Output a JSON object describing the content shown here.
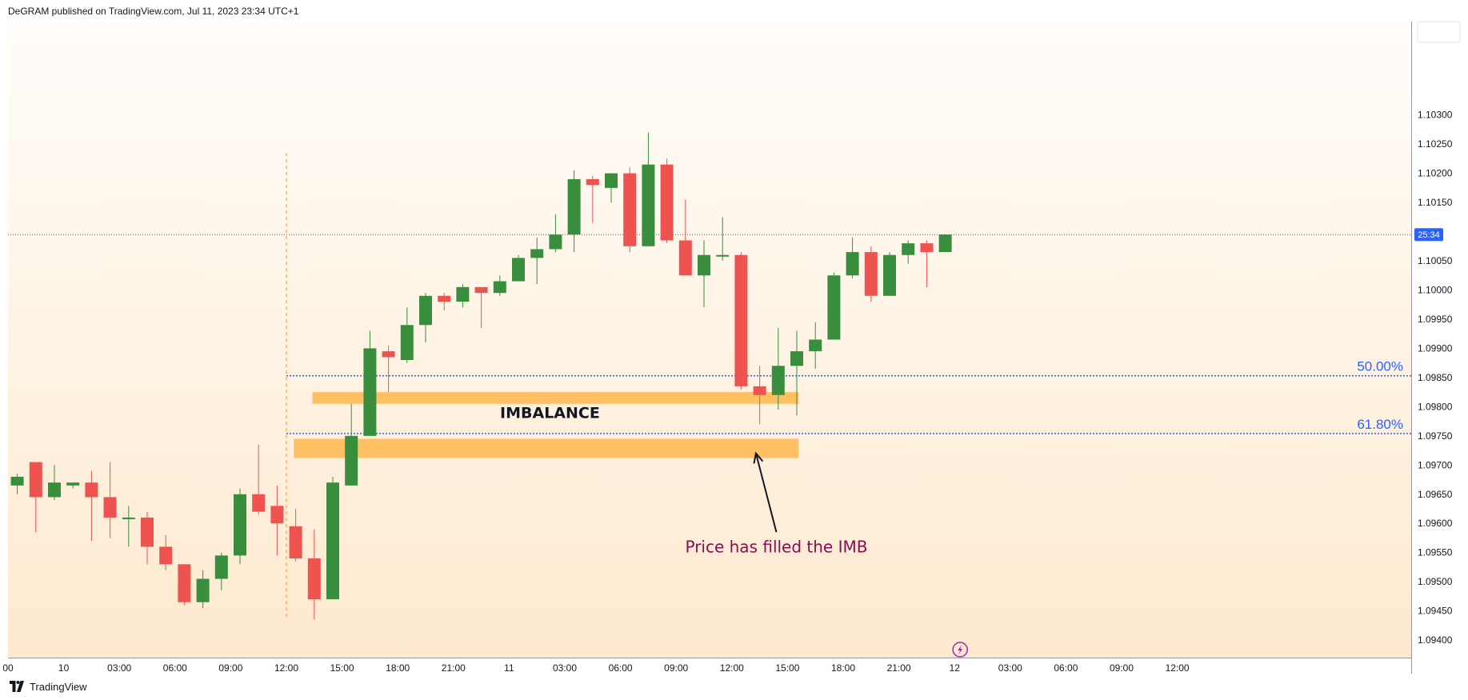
{
  "header": {
    "publisher_line": "DeGRAM published on TradingView.com, Jul 11, 2023 23:34 UTC+1"
  },
  "footer": {
    "brand": "TradingView"
  },
  "colors": {
    "up": "#388e3c",
    "down": "#ef5350",
    "zone": "#ffb74d",
    "fib": "#2962ff",
    "annotation_text": "#880e4f"
  },
  "chart_data": {
    "type": "candlestick",
    "price_axis": {
      "labels": [
        "1.10300",
        "1.10250",
        "1.10200",
        "1.10150",
        "1.10050",
        "1.10000",
        "1.09950",
        "1.09900",
        "1.09850",
        "1.09800",
        "1.09750",
        "1.09700",
        "1.09650",
        "1.09600",
        "1.09550",
        "1.09500",
        "1.09450",
        "1.09400"
      ],
      "range": [
        1.0937,
        1.1046
      ],
      "current_price": 1.10095,
      "countdown": "25:34"
    },
    "time_axis": {
      "labels": [
        "00",
        "10",
        "03:00",
        "06:00",
        "09:00",
        "12:00",
        "15:00",
        "18:00",
        "21:00",
        "11",
        "03:00",
        "06:00",
        "09:00",
        "12:00",
        "15:00",
        "18:00",
        "21:00",
        "12",
        "03:00",
        "06:00",
        "09:00",
        "12:00"
      ],
      "label_slots": [
        -0.5,
        2.5,
        5.5,
        8.5,
        11.5,
        14.5,
        17.5,
        20.5,
        23.5,
        26.5,
        29.5,
        32.5,
        35.5,
        38.5,
        41.5,
        44.5,
        47.5,
        50.5,
        53.5,
        56.5,
        59.5,
        62.5
      ]
    },
    "candles": [
      {
        "o": 1.09665,
        "h": 1.09685,
        "l": 1.0965,
        "c": 1.0968
      },
      {
        "o": 1.09705,
        "h": 1.09705,
        "l": 1.09585,
        "c": 1.09645
      },
      {
        "o": 1.09645,
        "h": 1.097,
        "l": 1.0964,
        "c": 1.0967
      },
      {
        "o": 1.09665,
        "h": 1.0967,
        "l": 1.0966,
        "c": 1.0967
      },
      {
        "o": 1.0967,
        "h": 1.0969,
        "l": 1.0957,
        "c": 1.09645
      },
      {
        "o": 1.09645,
        "h": 1.09705,
        "l": 1.09575,
        "c": 1.0961
      },
      {
        "o": 1.0961,
        "h": 1.0963,
        "l": 1.0956,
        "c": 1.0961
      },
      {
        "o": 1.0961,
        "h": 1.0962,
        "l": 1.0953,
        "c": 1.0956
      },
      {
        "o": 1.0956,
        "h": 1.0958,
        "l": 1.0952,
        "c": 1.0953
      },
      {
        "o": 1.0953,
        "h": 1.0953,
        "l": 1.0946,
        "c": 1.09465
      },
      {
        "o": 1.09465,
        "h": 1.0952,
        "l": 1.09455,
        "c": 1.09505
      },
      {
        "o": 1.09505,
        "h": 1.0955,
        "l": 1.09485,
        "c": 1.09545
      },
      {
        "o": 1.09545,
        "h": 1.0966,
        "l": 1.0953,
        "c": 1.0965
      },
      {
        "o": 1.0965,
        "h": 1.09735,
        "l": 1.09615,
        "c": 1.0962
      },
      {
        "o": 1.0963,
        "h": 1.09665,
        "l": 1.09545,
        "c": 1.096
      },
      {
        "o": 1.09595,
        "h": 1.09625,
        "l": 1.09535,
        "c": 1.0954
      },
      {
        "o": 1.0954,
        "h": 1.0959,
        "l": 1.09435,
        "c": 1.0947
      },
      {
        "o": 1.0947,
        "h": 1.0968,
        "l": 1.0947,
        "c": 1.0967
      },
      {
        "o": 1.09665,
        "h": 1.09805,
        "l": 1.09665,
        "c": 1.0975
      },
      {
        "o": 1.0975,
        "h": 1.0993,
        "l": 1.0975,
        "c": 1.099
      },
      {
        "o": 1.09895,
        "h": 1.09905,
        "l": 1.09825,
        "c": 1.09885
      },
      {
        "o": 1.0988,
        "h": 1.0997,
        "l": 1.09875,
        "c": 1.0994
      },
      {
        "o": 1.0994,
        "h": 1.09995,
        "l": 1.0991,
        "c": 1.0999
      },
      {
        "o": 1.0999,
        "h": 1.09995,
        "l": 1.09965,
        "c": 1.0998
      },
      {
        "o": 1.0998,
        "h": 1.1001,
        "l": 1.0997,
        "c": 1.10005
      },
      {
        "o": 1.10005,
        "h": 1.10005,
        "l": 1.09935,
        "c": 1.09995
      },
      {
        "o": 1.09995,
        "h": 1.10025,
        "l": 1.0999,
        "c": 1.10015
      },
      {
        "o": 1.10015,
        "h": 1.1006,
        "l": 1.10015,
        "c": 1.10055
      },
      {
        "o": 1.10055,
        "h": 1.1009,
        "l": 1.1001,
        "c": 1.1007
      },
      {
        "o": 1.1007,
        "h": 1.1013,
        "l": 1.10065,
        "c": 1.10095
      },
      {
        "o": 1.10095,
        "h": 1.10205,
        "l": 1.10065,
        "c": 1.1019
      },
      {
        "o": 1.1019,
        "h": 1.10195,
        "l": 1.10115,
        "c": 1.1018
      },
      {
        "o": 1.10175,
        "h": 1.102,
        "l": 1.1015,
        "c": 1.102
      },
      {
        "o": 1.102,
        "h": 1.1021,
        "l": 1.10065,
        "c": 1.10075
      },
      {
        "o": 1.10075,
        "h": 1.1027,
        "l": 1.10075,
        "c": 1.10215
      },
      {
        "o": 1.10215,
        "h": 1.10225,
        "l": 1.1008,
        "c": 1.10085
      },
      {
        "o": 1.10085,
        "h": 1.10155,
        "l": 1.10025,
        "c": 1.10025
      },
      {
        "o": 1.10025,
        "h": 1.10085,
        "l": 1.0997,
        "c": 1.1006
      },
      {
        "o": 1.1006,
        "h": 1.10125,
        "l": 1.1005,
        "c": 1.1006
      },
      {
        "o": 1.1006,
        "h": 1.10065,
        "l": 1.0983,
        "c": 1.09835
      },
      {
        "o": 1.09835,
        "h": 1.0987,
        "l": 1.0977,
        "c": 1.0982
      },
      {
        "o": 1.0982,
        "h": 1.09935,
        "l": 1.09795,
        "c": 1.0987
      },
      {
        "o": 1.0987,
        "h": 1.0993,
        "l": 1.09785,
        "c": 1.09895
      },
      {
        "o": 1.09895,
        "h": 1.09945,
        "l": 1.09865,
        "c": 1.09915
      },
      {
        "o": 1.09915,
        "h": 1.1003,
        "l": 1.09915,
        "c": 1.10025
      },
      {
        "o": 1.10025,
        "h": 1.1009,
        "l": 1.1002,
        "c": 1.10065
      },
      {
        "o": 1.10065,
        "h": 1.10075,
        "l": 1.0998,
        "c": 1.0999
      },
      {
        "o": 1.0999,
        "h": 1.10065,
        "l": 1.0999,
        "c": 1.1006
      },
      {
        "o": 1.1006,
        "h": 1.10085,
        "l": 1.10045,
        "c": 1.1008
      },
      {
        "o": 1.1008,
        "h": 1.10085,
        "l": 1.10005,
        "c": 1.10065
      },
      {
        "o": 1.10065,
        "h": 1.10095,
        "l": 1.10065,
        "c": 1.10095
      }
    ],
    "fib_levels": [
      {
        "label": "50.00%",
        "price": 1.09853
      },
      {
        "label": "61.80%",
        "price": 1.09754
      }
    ],
    "zones": [
      {
        "name": "upper-imbalance-zone",
        "price_top": 1.09825,
        "price_bottom": 1.09805,
        "start_slot": 15.9,
        "end_slot": 42.1
      },
      {
        "name": "lower-imbalance-zone",
        "price_top": 1.09745,
        "price_bottom": 1.09712,
        "start_slot": 14.9,
        "end_slot": 42.1
      }
    ],
    "session_break_slot": 14.5,
    "annotations": {
      "imbalance_label": "IMBALANCE",
      "note": "Price has filled the IMB",
      "arrow_tip": {
        "slot": 39.8,
        "price": 1.0972
      },
      "arrow_tail": {
        "slot": 40.9,
        "price": 1.09585
      }
    }
  }
}
